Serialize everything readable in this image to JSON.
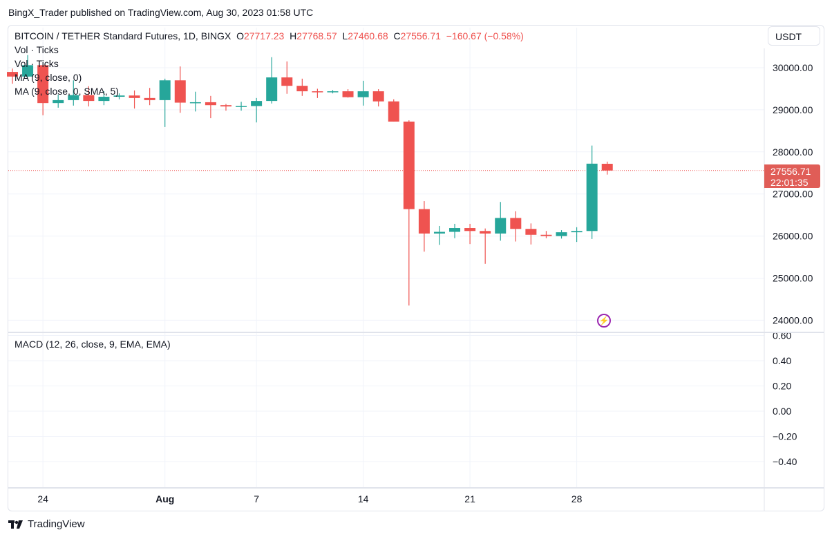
{
  "header": {
    "published": "BingX_Trader published on TradingView.com, Aug 30, 2023 01:58 UTC"
  },
  "legend": {
    "symbol": "BITCOIN / TETHER Standard Futures, 1D, BINGX",
    "o_label": "O",
    "o": "27717.23",
    "h_label": "H",
    "h": "27768.57",
    "l_label": "L",
    "l": "27460.68",
    "c_label": "C",
    "c": "27556.71",
    "change": "−160.67 (−0.58%)",
    "indicators": [
      "Vol · Ticks",
      "Vol · Ticks",
      "MA (9, close, 0)",
      "MA (9, close, 0, SMA, 5)"
    ],
    "macd": "MACD (12, 26, close, 9, EMA, EMA)"
  },
  "currency_button": "USDT",
  "last_price": {
    "price": "27556.71",
    "countdown": "22:01:35"
  },
  "brand": "TradingView",
  "colors": {
    "up": "#26a69a",
    "down": "#ef5350",
    "grid": "#f0f3fa"
  },
  "chart_data": {
    "type": "candlestick",
    "dates": [
      "Jul 22",
      "Jul 23",
      "Jul 24",
      "Jul 25",
      "Jul 26",
      "Jul 27",
      "Jul 28",
      "Jul 29",
      "Jul 30",
      "Jul 31",
      "Aug 1",
      "Aug 2",
      "Aug 3",
      "Aug 4",
      "Aug 5",
      "Aug 6",
      "Aug 7",
      "Aug 8",
      "Aug 9",
      "Aug 10",
      "Aug 11",
      "Aug 12",
      "Aug 13",
      "Aug 14",
      "Aug 15",
      "Aug 16",
      "Aug 17",
      "Aug 18",
      "Aug 19",
      "Aug 20",
      "Aug 21",
      "Aug 22",
      "Aug 23",
      "Aug 24",
      "Aug 25",
      "Aug 26",
      "Aug 27",
      "Aug 28",
      "Aug 29",
      "Aug 30"
    ],
    "ohlc": [
      [
        29900,
        29980,
        29620,
        29790
      ],
      [
        29790,
        30300,
        29780,
        30060
      ],
      [
        30060,
        30080,
        28870,
        29160
      ],
      [
        29160,
        29360,
        29050,
        29230
      ],
      [
        29230,
        29700,
        29100,
        29350
      ],
      [
        29350,
        29560,
        29080,
        29210
      ],
      [
        29210,
        29440,
        29110,
        29310
      ],
      [
        29310,
        29390,
        29250,
        29340
      ],
      [
        29340,
        29460,
        29030,
        29280
      ],
      [
        29280,
        29520,
        29110,
        29230
      ],
      [
        29230,
        29740,
        28590,
        29700
      ],
      [
        29700,
        30030,
        28930,
        29170
      ],
      [
        29170,
        29430,
        28960,
        29180
      ],
      [
        29180,
        29330,
        28800,
        29110
      ],
      [
        29110,
        29140,
        28980,
        29080
      ],
      [
        29080,
        29190,
        28980,
        29090
      ],
      [
        29090,
        29280,
        28700,
        29210
      ],
      [
        29210,
        30250,
        29150,
        29770
      ],
      [
        29770,
        30150,
        29380,
        29570
      ],
      [
        29570,
        29740,
        29330,
        29440
      ],
      [
        29440,
        29500,
        29280,
        29420
      ],
      [
        29420,
        29470,
        29390,
        29440
      ],
      [
        29440,
        29490,
        29290,
        29300
      ],
      [
        29300,
        29690,
        29100,
        29440
      ],
      [
        29440,
        29490,
        29080,
        29200
      ],
      [
        29200,
        29250,
        28720,
        28720
      ],
      [
        28720,
        28750,
        24350,
        26640
      ],
      [
        26640,
        26830,
        25630,
        26060
      ],
      [
        26060,
        26240,
        25790,
        26100
      ],
      [
        26100,
        26290,
        25950,
        26190
      ],
      [
        26190,
        26290,
        25810,
        26120
      ],
      [
        26120,
        26180,
        25340,
        26060
      ],
      [
        26060,
        26810,
        25890,
        26430
      ],
      [
        26430,
        26590,
        25870,
        26170
      ],
      [
        26170,
        26300,
        25800,
        26030
      ],
      [
        26030,
        26120,
        25950,
        26000
      ],
      [
        26000,
        26140,
        25940,
        26090
      ],
      [
        26090,
        26210,
        25860,
        26120
      ],
      [
        26120,
        28150,
        25930,
        27720
      ],
      [
        27717.23,
        27768.57,
        27460.68,
        27556.71
      ]
    ],
    "y_ticks": [
      "30000.00",
      "29000.00",
      "28000.00",
      "27000.00",
      "26000.00",
      "25000.00",
      "24000.00"
    ],
    "y_tick_values": [
      30000,
      29000,
      28000,
      27000,
      26000,
      25000,
      24000
    ],
    "macd_ticks": [
      "0.60",
      "0.40",
      "0.20",
      "0.00",
      "−0.20",
      "−0.40"
    ],
    "macd_tick_values": [
      0.6,
      0.4,
      0.2,
      0,
      -0.2,
      -0.4
    ],
    "x_ticks": [
      {
        "label": "24",
        "index": 2
      },
      {
        "label": "Aug",
        "index": 10,
        "bold": true
      },
      {
        "label": "7",
        "index": 16
      },
      {
        "label": "14",
        "index": 23
      },
      {
        "label": "21",
        "index": 30
      },
      {
        "label": "28",
        "index": 37
      }
    ]
  }
}
